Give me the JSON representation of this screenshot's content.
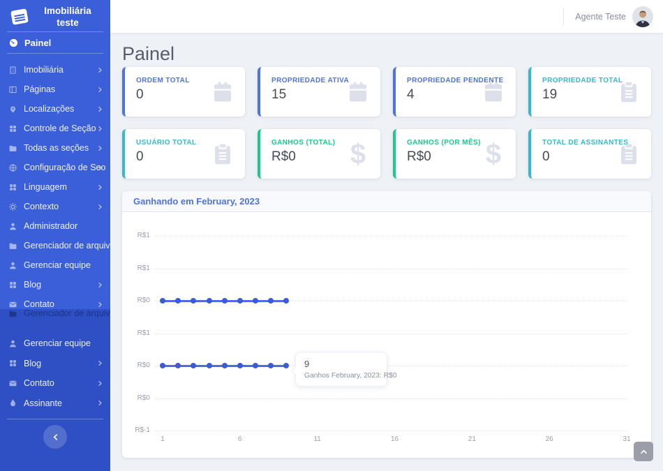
{
  "brand": {
    "title_line1": "Imobiliária",
    "title_line2": "teste"
  },
  "sidebar": {
    "painel": {
      "label": "Painel",
      "icon": "tachometer-icon"
    },
    "items": [
      {
        "label": "Imobiliária",
        "icon": "building",
        "chevron": true
      },
      {
        "label": "Páginas",
        "icon": "pages",
        "chevron": true
      },
      {
        "label": "Localizações",
        "icon": "map-pin",
        "chevron": true
      },
      {
        "label": "Controle de Seção",
        "icon": "grid",
        "chevron": true
      },
      {
        "label": "Todas as seções",
        "icon": "folder",
        "chevron": true
      },
      {
        "label": "Configuração de Seo",
        "icon": "globe",
        "chevron": true
      },
      {
        "label": "Linguagem",
        "icon": "grid",
        "chevron": true
      },
      {
        "label": "Contexto",
        "icon": "gear",
        "chevron": true
      },
      {
        "label": "Administrador",
        "icon": "user",
        "chevron": false
      },
      {
        "label": "Gerenciador de arquivos",
        "icon": "folder",
        "chevron": false
      },
      {
        "label": "Gerenciar equipe",
        "icon": "user",
        "chevron": false
      },
      {
        "label": "Blog",
        "icon": "grid",
        "chevron": true
      },
      {
        "label": "Contato",
        "icon": "envelope",
        "chevron": true
      }
    ],
    "ghost_item": {
      "label": "Gerenciador de arquivos",
      "icon": "folder"
    },
    "lower_items": [
      {
        "label": "Gerenciar equipe",
        "icon": "user",
        "chevron": false
      },
      {
        "label": "Blog",
        "icon": "grid",
        "chevron": true
      },
      {
        "label": "Contato",
        "icon": "envelope",
        "chevron": true
      },
      {
        "label": "Assinante",
        "icon": "drop",
        "chevron": true
      }
    ]
  },
  "header": {
    "user_name": "Agente Teste"
  },
  "page": {
    "title": "Painel"
  },
  "stat_cards": [
    {
      "label": "ORDEM TOTAL",
      "value": "0",
      "accent": "#4e73df",
      "icon": "calendar"
    },
    {
      "label": "PROPRIEDADE ATIVA",
      "value": "15",
      "accent": "#4e73df",
      "icon": "calendar"
    },
    {
      "label": "PROPRIEDADE PENDENTE",
      "value": "4",
      "accent": "#4e73df",
      "icon": "calendar"
    },
    {
      "label": "PROPRIEDADE TOTAL",
      "value": "19",
      "accent": "#36b9cc",
      "icon": "clipboard"
    },
    {
      "label": "USUÁRIO TOTAL",
      "value": "0",
      "accent": "#36b9cc",
      "icon": "clipboard"
    },
    {
      "label": "GANHOS (TOTAL)",
      "value": "R$0",
      "accent": "#1cc88a",
      "icon": "dollar"
    },
    {
      "label": "GANHOS (POR MÊS)",
      "value": "R$0",
      "accent": "#1cc88a",
      "icon": "dollar"
    },
    {
      "label": "TOTAL DE ASSINANTES",
      "value": "0",
      "accent": "#36b9cc",
      "icon": "clipboard"
    }
  ],
  "chart_data": {
    "type": "line",
    "title": "Ganhando em February, 2023",
    "xlabel": "",
    "ylabel": "",
    "x_ticks": [
      "1",
      "6",
      "11",
      "16",
      "21",
      "26",
      "31"
    ],
    "y_ticks": [
      "R$1",
      "R$1",
      "R$0",
      "R$1",
      "R$0",
      "R$0",
      "R$-1"
    ],
    "x_range": [
      1,
      31
    ],
    "grid": "dotted",
    "legend": "none",
    "series": [
      {
        "name": "Ganhos February, 2023",
        "days": [
          1,
          2,
          3,
          4,
          5,
          6,
          7,
          8,
          9
        ],
        "values": [
          0,
          0,
          0,
          0,
          0,
          0,
          0,
          0,
          0
        ],
        "row_index": 2,
        "color": "#4a6de4"
      },
      {
        "name": "Ganhos February, 2023",
        "days": [
          1,
          2,
          3,
          4,
          5,
          6,
          7,
          8,
          9
        ],
        "values": [
          0,
          0,
          0,
          0,
          0,
          0,
          0,
          0,
          0
        ],
        "row_index": 4,
        "color": "#4a6de4"
      }
    ],
    "tooltip": {
      "title": "9",
      "text": "Ganhos February, 2023: R$0"
    }
  },
  "colors": {
    "sidebar": "#3b5fd9",
    "sidebar_lower": "#2e50c4",
    "primary": "#4e73df",
    "info": "#36b9cc",
    "success": "#1cc88a"
  },
  "misc": {
    "scroll_top_icon": "chevron-up",
    "collapse_icon": "chevron-left"
  }
}
